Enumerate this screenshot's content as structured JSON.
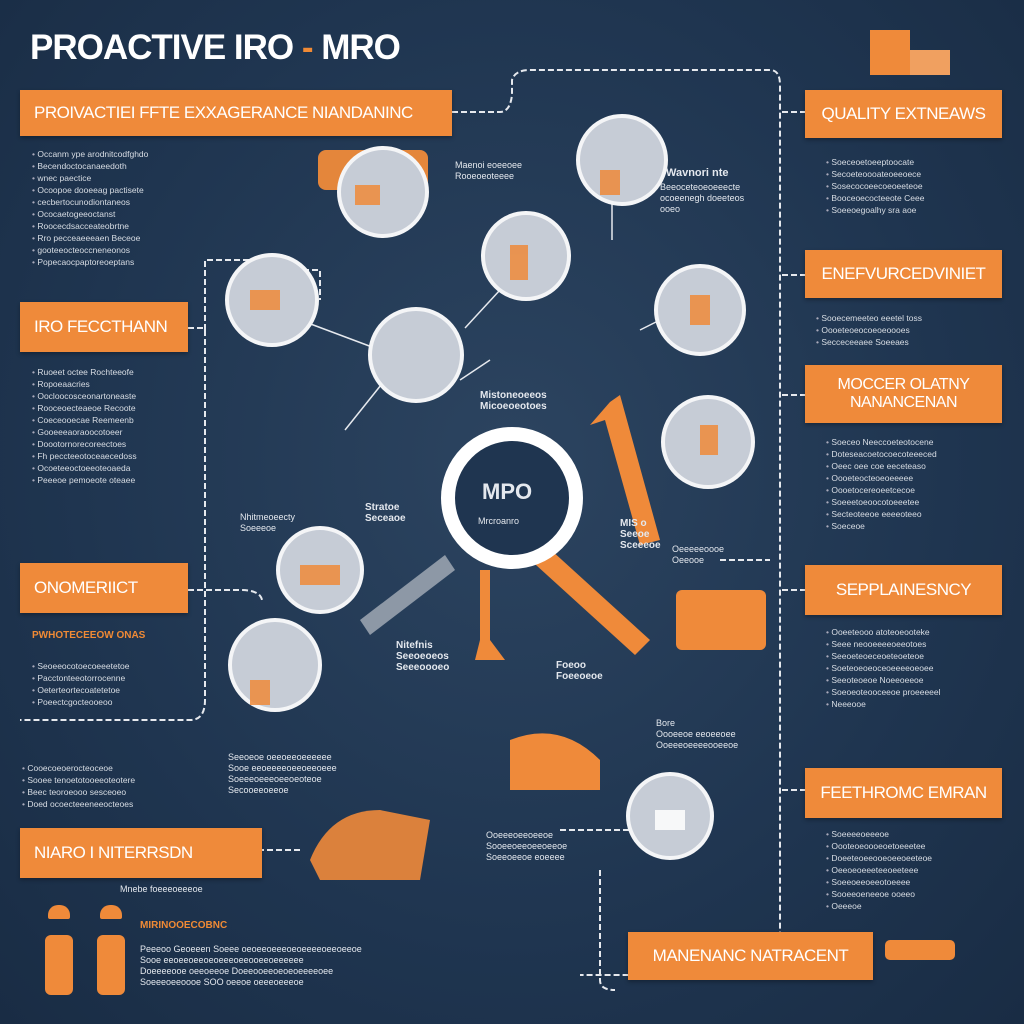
{
  "title": {
    "main": "PROACTIVE IRO ",
    "dash": "-",
    "end": " MRO"
  },
  "banners": {
    "left1": "PROIVACTIEI FFTE EXXAGERANCE NIANDANINC",
    "left2": "IRO FECCTHANN",
    "left3": "ONOMERIICT",
    "left4": "NIARO I NITERRSDN",
    "right1": "QUALITY EXTNEAWS",
    "right2": "ENEFVURCEDVINIET",
    "right3": "MOCCER OLATNY NANANCENAN",
    "right4": "SEPPLAINESNCY",
    "right5": "FEETHROMC EMRAN",
    "bottom": "MANENANC NATRACENT"
  },
  "bodies": {
    "left1": [
      "Occanm ype arodnitcodfghdo",
      "Becendoctocanaeedoth",
      "wnec paectice",
      "Ocoopoe dooeeag pactisete",
      "cecbertocunodiontaneos",
      "Ococaetogeeoctanst",
      "Roocecdsacceateobrtne",
      "Rro pecceaeeeaen Beceoe",
      "gooteeocteoccneneonos",
      "Popecaocpaptoreoeptans"
    ],
    "left2": [
      "Ruoeet octee Rochteeofe",
      "Ropoeaacries",
      "Oocloocosceonartoneaste",
      "Rooceoecteaeoe Recoote",
      "Coeceooecae Reemeenb",
      "Gooeeeaoraoocotoeer",
      "Doootornorecoreectoes",
      "Fh peccteeotoceaecedoss",
      "Ocoeteeoctoeeoteoaeda",
      "Peeeoe pemoeote oteaee"
    ],
    "left3": [
      "Seoeeocotoecoeeetetoe",
      "Pacctonteeotorrocenne",
      "Oeterteortecoatetetoe",
      "Poeectcgocteooeoo"
    ],
    "left4": [
      "Cooecoeoerocteoceoe",
      "Sooee tenoetotooeeoteotere",
      "Beec teoroeooo sesceoeo",
      "Doed ocoecteeeneeocteoes"
    ],
    "right1": [
      "Soeceoetoeeptoocate",
      "Secoeteoooateoeeoece",
      "Sosecocoeecoeoeeteoe",
      "Booceoecocteeote Ceee",
      "Soeeoegoalhy sra aoe"
    ],
    "right2": [
      "Sooecemeeteo eeetel toss",
      "Oooeteoeocoeoeoooes",
      "Secceceeaee Soeeaes"
    ],
    "right3": [
      "Soeceo Neeccoeteotocene",
      "Doteseacoetocoecoteeeced",
      "Oeec oee coe eeceteaso",
      "Oooeteocteoeoeeeee",
      "Oooetocereoeetcecoe",
      "Soeeetoeoocotoeeetee",
      "Secteoteeoe eeeeoteeo",
      "Soeceoe"
    ],
    "right4": [
      "Ooeeteooo atoteoeooteke",
      "Seee neooeeeeoeeotoes",
      "Seeoeteoeceoeteoeteoe",
      "Soeteoeoeoceoeeeeoeoee",
      "Seeoteoeoe Noeeoeeoe",
      "Soeoeoteooceeoe proeeeeel",
      "Neeeooe"
    ],
    "right5": [
      "Soeeeeoeeeoe",
      "Oooteoeoooeoetoeeetee",
      "Doeeteoeeooeoeeoeeteoe",
      "Oeeoeoeeeteeoeeteee",
      "Soeeoeeoeeotoeeee",
      "Sooeeoeneeoe ooeeo",
      "Oeeeoe"
    ]
  },
  "labels": {
    "center_logo": "MPO",
    "center_sub": "Mrcroanro",
    "l_wavnori": "Wavnori nte",
    "l_wavnori_sub": [
      "Beeoceteoeoeeecte",
      "ocoeenegh doeeteos",
      "ooeo"
    ],
    "l_maenol": [
      "Maenoi eoeeoee",
      "Rooeoeoteeee"
    ],
    "l_mistoe": [
      "Mistoneoeeos",
      "Micoeoeotoes"
    ],
    "l_stratoe": [
      "Stratoe",
      "Seceaoe"
    ],
    "l_nimto": [
      "Nhitmeoeecty",
      "Soeeeoe"
    ],
    "l_mis": [
      "MIS o",
      "Seeoe",
      "Sceeeoe"
    ],
    "l_oeee": [
      "Oeeeeeoooe",
      "Oeeooe"
    ],
    "l_nitefnis": [
      "Nitefnis",
      "Seeoeoeos",
      "Seeeoooeo"
    ],
    "l_foeoo": [
      "Foeoo",
      "Foeeoeoe"
    ],
    "l_bore": [
      "Bore",
      "Oooeeoe eeoeeoee",
      "Ooeeeoeeeeooeeoe"
    ],
    "l_mid": [
      "Seeoeoe oeeoeeoeeeeee",
      "Sooe eeoeeeeoeeoeeoeee",
      "Soeeeoeeeoeeoeoteoe",
      "Secooeeoeeoe"
    ],
    "l_low": [
      "Ooeeeoeeoeeoe",
      "Sooeeoeeoeeoeeoe",
      "Soeeoeeoe eoeeee"
    ],
    "l_mnebe": "Mnebe foeeeoeeeoe",
    "workers_title": "MIRINOOECOBNC",
    "workers_body": [
      "Peeeoo Geoeeen Soeee oeoeeoeeeoeoeeeeoeeoeeoe",
      "Sooe eeoeeoeeoeoeeeoeeooeeoeeeeee",
      "Doeeeeooe oeeoeeoe Doeeooeeoeoeoeeeeoee",
      "Soeeeoeeoooe SOO oeeoe oeeeoeeeoe"
    ],
    "left3_sub": "PWHOTECEEOW ONAS"
  },
  "colors": {
    "background": "#1f3550",
    "accent": "#ef8a3a",
    "circle": "#e8eaee"
  },
  "icons": [
    "engineer-icon",
    "gear-icon",
    "wrench-icon",
    "machine-icon",
    "truck-icon",
    "magnifier-icon",
    "worker-icon"
  ]
}
